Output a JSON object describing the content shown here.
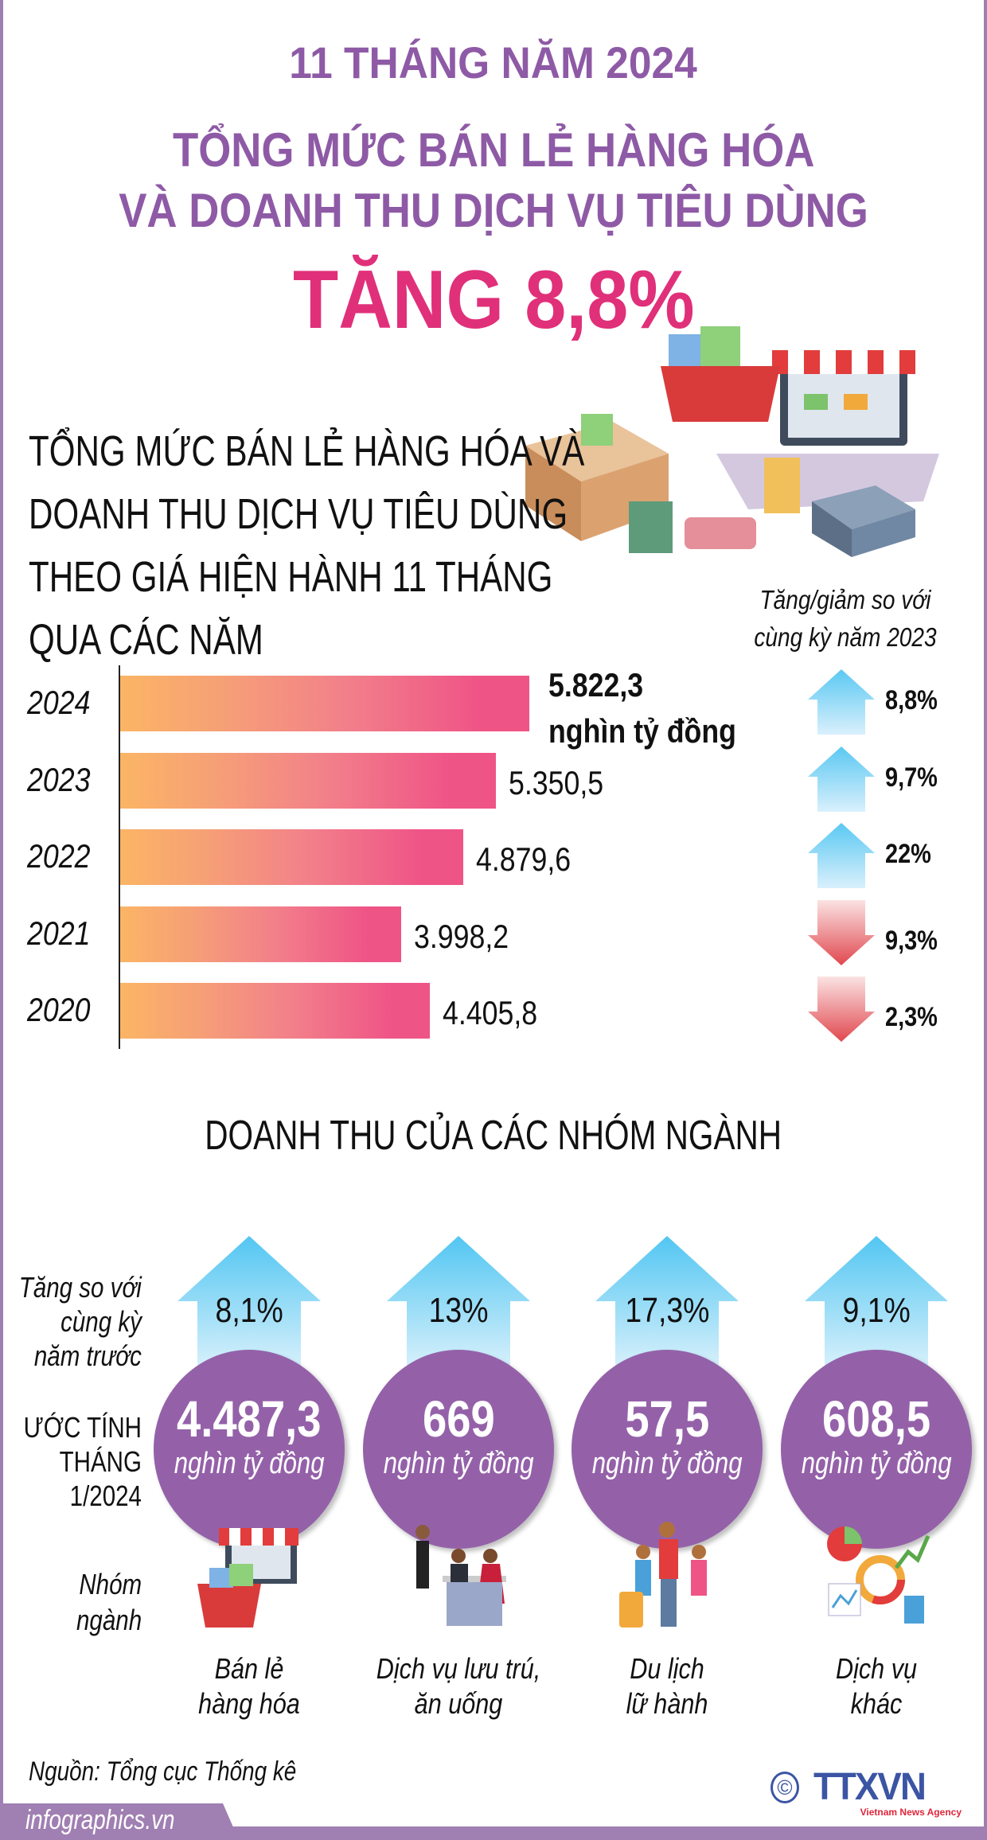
{
  "header": {
    "line1": "11 THÁNG NĂM 2024",
    "line2": "TỔNG MỨC BÁN LẺ HÀNG HÓA",
    "line3": "VÀ DOANH THU DỊCH VỤ TIÊU DÙNG",
    "highlight": "TĂNG 8,8%"
  },
  "section1": {
    "title_lines": [
      "TỔNG MỨC BÁN LẺ HÀNG HÓA VÀ",
      "DOANH THU DỊCH VỤ TIÊU DÙNG",
      "THEO GIÁ HIỆN HÀNH 11 THÁNG",
      "QUA CÁC NĂM"
    ],
    "change_note_lines": [
      "Tăng/giảm so với",
      "cùng kỳ năm 2023"
    ],
    "unit": "nghìn tỷ đồng"
  },
  "chart_data": {
    "type": "bar",
    "orientation": "horizontal",
    "categories": [
      "2024",
      "2023",
      "2022",
      "2021",
      "2020"
    ],
    "values": [
      5822.3,
      5350.5,
      4879.6,
      3998.2,
      4405.8
    ],
    "value_labels": [
      "5.822,3",
      "5.350,5",
      "4.879,6",
      "3.998,2",
      "4.405,8"
    ],
    "unit": "nghìn tỷ đồng",
    "changes": [
      {
        "label": "8,8%",
        "direction": "up"
      },
      {
        "label": "9,7%",
        "direction": "up"
      },
      {
        "label": "22%",
        "direction": "up"
      },
      {
        "label": "9,3%",
        "direction": "down"
      },
      {
        "label": "2,3%",
        "direction": "down"
      }
    ],
    "colors": {
      "bar_start": "#fbb565",
      "bar_end": "#ef5487",
      "up": "#5ac8f2",
      "down": "#e0484f"
    }
  },
  "section2": {
    "title": "DOANH THU CỦA CÁC NHÓM NGÀNH",
    "row_labels": {
      "growth": [
        "Tăng so với",
        "cùng kỳ",
        "năm trước"
      ],
      "estimate": [
        "ƯỚC TÍNH",
        "THÁNG",
        "1/2024"
      ],
      "group": [
        "Nhóm",
        "ngành"
      ]
    },
    "groups": [
      {
        "growth": "8,1%",
        "value": "4.487,3",
        "unit": "nghìn tỷ đồng",
        "name": [
          "Bán lẻ",
          "hàng hóa"
        ],
        "icon": "retail-store-icon"
      },
      {
        "growth": "13%",
        "value": "669",
        "unit": "nghìn tỷ đồng",
        "name": [
          "Dịch vụ lưu trú,",
          "ăn uống"
        ],
        "icon": "restaurant-icon"
      },
      {
        "growth": "17,3%",
        "value": "57,5",
        "unit": "nghìn tỷ đồng",
        "name": [
          "Du lịch",
          "lữ hành"
        ],
        "icon": "travel-icon"
      },
      {
        "growth": "9,1%",
        "value": "608,5",
        "unit": "nghìn tỷ đồng",
        "name": [
          "Dịch vụ",
          "khác"
        ],
        "icon": "services-chart-icon"
      }
    ]
  },
  "footer": {
    "source": "Nguồn: Tổng cục Thống kê",
    "site": "infographics.vn",
    "logo": "TTXVN",
    "logo_sub": "Vietnam News Agency",
    "copyright": "©"
  },
  "colors": {
    "purple": "#8e5aa6",
    "pink": "#e0307a",
    "circle": "#9461a9"
  }
}
